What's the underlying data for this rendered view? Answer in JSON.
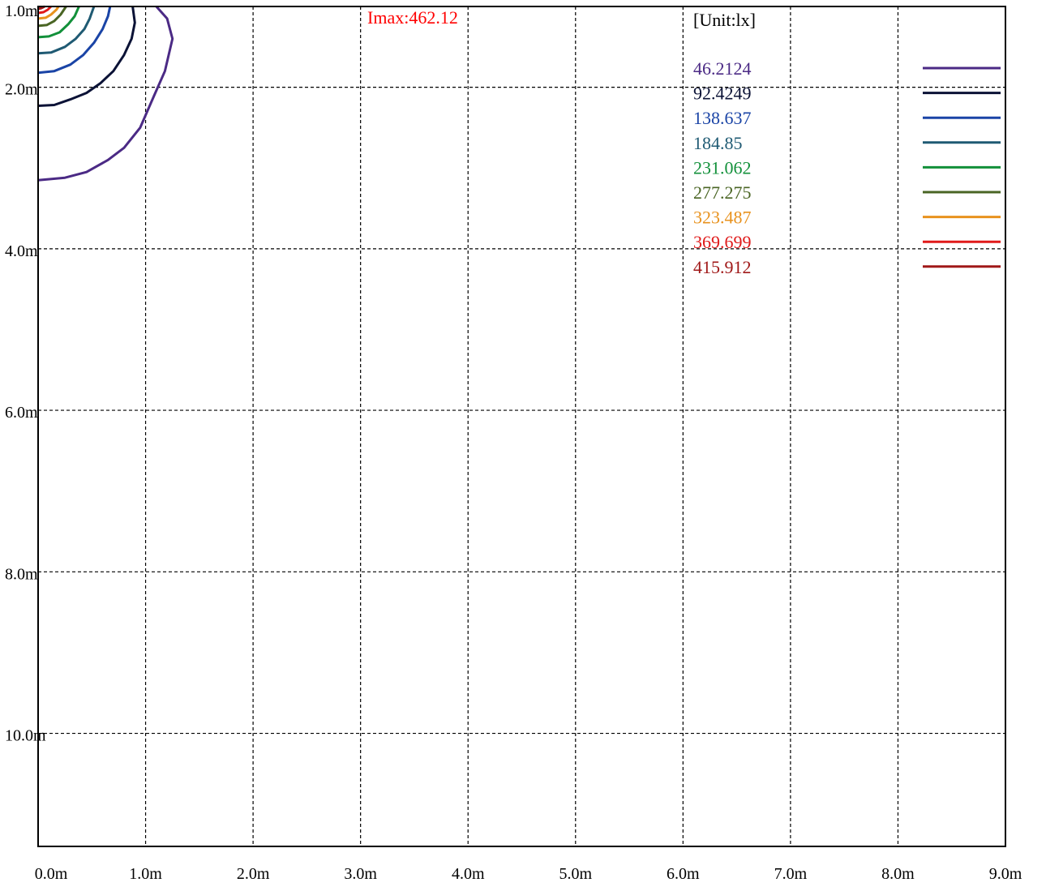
{
  "chart_data": {
    "type": "contour",
    "annotation": "Imax:462.12",
    "annotation_color": "#ff0000",
    "unit_label": "[Unit:lx]",
    "x_ticks": [
      "0.0m",
      "1.0m",
      "2.0m",
      "3.0m",
      "4.0m",
      "5.0m",
      "6.0m",
      "7.0m",
      "8.0m",
      "9.0m"
    ],
    "y_ticks": [
      "1.0m",
      "2.0m",
      "4.0m",
      "6.0m",
      "8.0m",
      "10.0m"
    ],
    "y_tick_values": [
      1.0,
      2.0,
      4.0,
      6.0,
      8.0,
      10.0
    ],
    "xlim": [
      0,
      9
    ],
    "ylim_top_to_bottom": [
      1.0,
      11.4
    ],
    "grid": true,
    "levels": [
      {
        "label": "46.2124",
        "value": 46.2124,
        "color": "#4b2a85",
        "path": [
          [
            0.0,
            3.15
          ],
          [
            0.25,
            3.12
          ],
          [
            0.45,
            3.05
          ],
          [
            0.65,
            2.9
          ],
          [
            0.8,
            2.75
          ],
          [
            0.95,
            2.5
          ],
          [
            1.08,
            2.1
          ],
          [
            1.18,
            1.8
          ],
          [
            1.25,
            1.4
          ],
          [
            1.2,
            1.15
          ],
          [
            1.1,
            1.0
          ]
        ]
      },
      {
        "label": "92.4249",
        "value": 92.4249,
        "color": "#0b1236",
        "path": [
          [
            0.0,
            2.23
          ],
          [
            0.15,
            2.22
          ],
          [
            0.3,
            2.15
          ],
          [
            0.45,
            2.07
          ],
          [
            0.58,
            1.95
          ],
          [
            0.7,
            1.8
          ],
          [
            0.8,
            1.6
          ],
          [
            0.87,
            1.4
          ],
          [
            0.9,
            1.2
          ],
          [
            0.88,
            1.0
          ]
        ]
      },
      {
        "label": "138.637",
        "value": 138.637,
        "color": "#1a44a6",
        "path": [
          [
            0.0,
            1.82
          ],
          [
            0.15,
            1.8
          ],
          [
            0.3,
            1.72
          ],
          [
            0.42,
            1.6
          ],
          [
            0.52,
            1.45
          ],
          [
            0.6,
            1.28
          ],
          [
            0.65,
            1.12
          ],
          [
            0.67,
            1.0
          ]
        ]
      },
      {
        "label": "184.85",
        "value": 184.85,
        "color": "#1f5a73",
        "path": [
          [
            0.0,
            1.58
          ],
          [
            0.12,
            1.57
          ],
          [
            0.25,
            1.5
          ],
          [
            0.35,
            1.4
          ],
          [
            0.43,
            1.28
          ],
          [
            0.48,
            1.15
          ],
          [
            0.52,
            1.0
          ]
        ]
      },
      {
        "label": "231.062",
        "value": 231.062,
        "color": "#12903a",
        "path": [
          [
            0.0,
            1.38
          ],
          [
            0.1,
            1.37
          ],
          [
            0.2,
            1.32
          ],
          [
            0.28,
            1.22
          ],
          [
            0.34,
            1.12
          ],
          [
            0.38,
            1.0
          ]
        ]
      },
      {
        "label": "277.275",
        "value": 277.275,
        "color": "#4a6524",
        "path": [
          [
            0.0,
            1.24
          ],
          [
            0.08,
            1.23
          ],
          [
            0.15,
            1.18
          ],
          [
            0.21,
            1.1
          ],
          [
            0.26,
            1.0
          ]
        ]
      },
      {
        "label": "323.487",
        "value": 323.487,
        "color": "#e8921e",
        "path": [
          [
            0.0,
            1.15
          ],
          [
            0.07,
            1.14
          ],
          [
            0.12,
            1.1
          ],
          [
            0.17,
            1.04
          ],
          [
            0.19,
            1.0
          ]
        ]
      },
      {
        "label": "369.699",
        "value": 369.699,
        "color": "#e01a1a",
        "path": [
          [
            0.0,
            1.08
          ],
          [
            0.05,
            1.07
          ],
          [
            0.09,
            1.04
          ],
          [
            0.12,
            1.0
          ]
        ]
      },
      {
        "label": "415.912",
        "value": 415.912,
        "color": "#a01818",
        "path": [
          [
            0.0,
            1.03
          ],
          [
            0.03,
            1.02
          ],
          [
            0.06,
            1.0
          ]
        ]
      }
    ]
  }
}
